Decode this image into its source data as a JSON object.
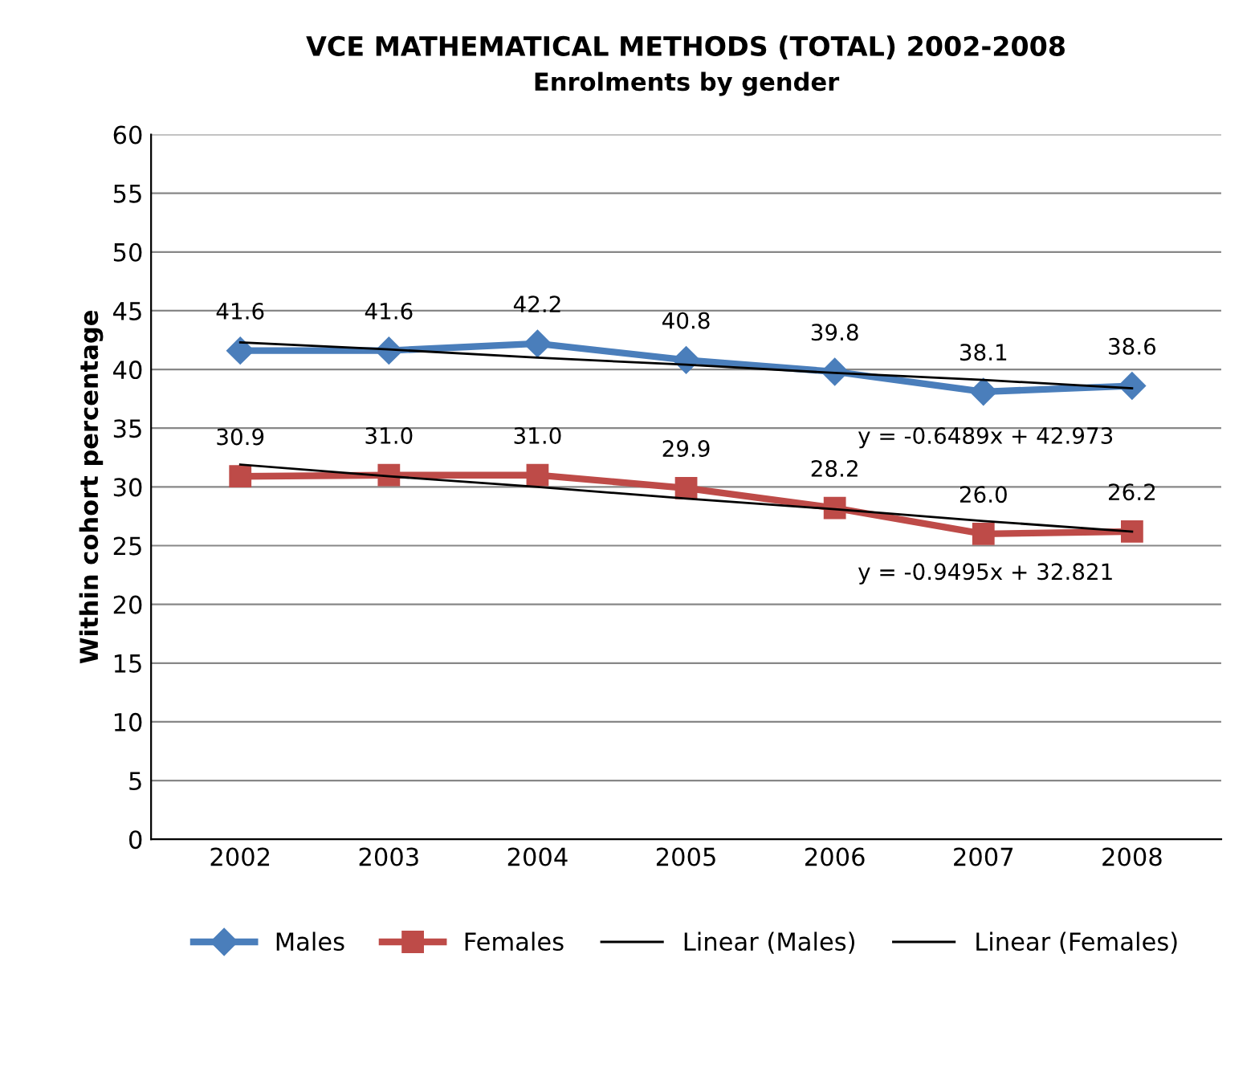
{
  "chart_data": {
    "type": "line",
    "title": "VCE MATHEMATICAL METHODS (TOTAL) 2002-2008",
    "subtitle": "Enrolments by gender",
    "ylabel": "Within cohort percentage",
    "categories": [
      "2002",
      "2003",
      "2004",
      "2005",
      "2006",
      "2007",
      "2008"
    ],
    "series": [
      {
        "name": "Males",
        "color": "#4a7ebb",
        "marker": "diamond",
        "values": [
          41.6,
          41.6,
          42.2,
          40.8,
          39.8,
          38.1,
          38.6
        ],
        "value_labels": [
          "41.6",
          "41.6",
          "42.2",
          "40.8",
          "39.8",
          "38.1",
          "38.6"
        ]
      },
      {
        "name": "Females",
        "color": "#be4b48",
        "marker": "square",
        "values": [
          30.9,
          31.0,
          31.0,
          29.9,
          28.2,
          26.0,
          26.2
        ],
        "value_labels": [
          "30.9",
          "31.0",
          "31.0",
          "29.9",
          "28.2",
          "26.0",
          "26.2"
        ]
      },
      {
        "name": "Linear (Males)",
        "color": "#000000",
        "marker": "none",
        "values": [
          42.3,
          41.7,
          41.0,
          40.4,
          39.7,
          39.1,
          38.4
        ]
      },
      {
        "name": "Linear (Females)",
        "color": "#000000",
        "marker": "none",
        "values": [
          31.9,
          30.9,
          30.0,
          29.0,
          28.1,
          27.1,
          26.2
        ]
      }
    ],
    "annotations": [
      "y = -0.6489x + 42.973",
      "y = -0.9495x + 32.821"
    ],
    "ylim": [
      0,
      60
    ],
    "yticks": [
      0,
      5,
      10,
      15,
      20,
      25,
      30,
      35,
      40,
      45,
      50,
      55,
      60
    ],
    "grid": "y",
    "legend": "bottom"
  }
}
